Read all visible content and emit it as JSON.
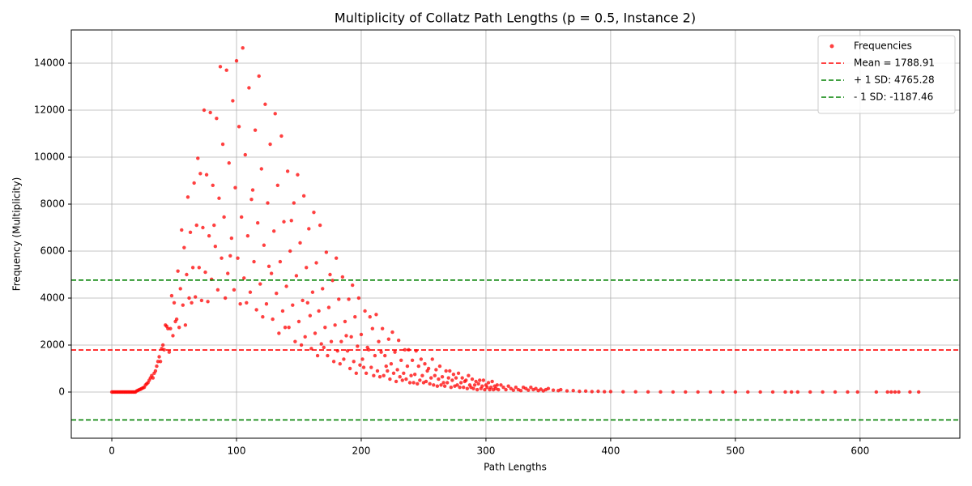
{
  "chart_data": {
    "type": "scatter",
    "title": "Multiplicity of Collatz Path Lengths (p = 0.5, Instance 2)",
    "x_label": "Path Lengths",
    "y_label": "Frequency (Multiplicity)",
    "xlim": [
      -32.5,
      680
    ],
    "ylim": [
      -1966,
      15414
    ],
    "xticks": [
      0,
      100,
      200,
      300,
      400,
      500,
      600
    ],
    "yticks": [
      0,
      2000,
      4000,
      6000,
      8000,
      10000,
      12000,
      14000
    ],
    "grid": true,
    "legend": "upper right",
    "x": [
      0,
      1,
      2,
      3,
      4,
      5,
      6,
      7,
      8,
      9,
      10,
      11,
      12,
      13,
      14,
      15,
      16,
      17,
      18,
      19,
      20,
      21,
      22,
      23,
      24,
      25,
      26,
      27,
      28,
      29,
      30,
      31,
      32,
      33,
      34,
      35,
      36,
      37,
      38,
      39,
      40,
      41,
      42,
      43,
      44,
      45,
      46,
      47,
      48,
      49,
      50,
      51,
      52,
      53,
      54,
      55,
      56,
      57,
      58,
      59,
      60,
      61,
      62,
      63,
      64,
      65,
      66,
      67,
      68,
      69,
      70,
      71,
      72,
      73,
      74,
      75,
      76,
      77,
      78,
      79,
      80,
      81,
      82,
      83,
      84,
      85,
      86,
      87,
      88,
      89,
      90,
      91,
      92,
      93,
      94,
      95,
      96,
      97,
      98,
      99,
      100,
      101,
      102,
      103,
      104,
      105,
      106,
      107,
      108,
      109,
      110,
      111,
      112,
      113,
      114,
      115,
      116,
      117,
      118,
      119,
      120,
      121,
      122,
      123,
      124,
      125,
      126,
      127,
      128,
      129,
      130,
      131,
      132,
      133,
      134,
      135,
      136,
      137,
      138,
      139,
      140,
      141,
      142,
      143,
      144,
      145,
      146,
      147,
      148,
      149,
      150,
      151,
      152,
      153,
      154,
      155,
      156,
      157,
      158,
      159,
      160,
      161,
      162,
      163,
      164,
      165,
      166,
      167,
      168,
      169,
      170,
      171,
      172,
      173,
      174,
      175,
      176,
      177,
      178,
      179,
      180,
      181,
      182,
      183,
      184,
      185,
      186,
      187,
      188,
      189,
      190,
      191,
      192,
      193,
      194,
      195,
      196,
      197,
      198,
      199,
      200,
      201,
      202,
      203,
      204,
      205,
      206,
      207,
      208,
      209,
      210,
      211,
      212,
      213,
      214,
      215,
      216,
      217,
      218,
      219,
      220,
      221,
      222,
      223,
      224,
      225,
      226,
      227,
      228,
      229,
      230,
      231,
      232,
      233,
      234,
      235,
      236,
      237,
      238,
      239,
      240,
      241,
      242,
      243,
      244,
      245,
      246,
      247,
      248,
      249,
      250,
      251,
      252,
      253,
      254,
      255,
      256,
      257,
      258,
      259,
      260,
      261,
      262,
      263,
      264,
      265,
      266,
      267,
      268,
      269,
      270,
      271,
      272,
      273,
      274,
      275,
      276,
      277,
      278,
      279,
      280,
      281,
      282,
      283,
      284,
      285,
      286,
      287,
      288,
      289,
      290,
      291,
      292,
      293,
      294,
      295,
      296,
      297,
      298,
      299,
      300,
      301,
      302,
      303,
      304,
      305,
      306,
      307,
      308,
      309,
      310,
      312,
      314,
      316,
      318,
      320,
      322,
      324,
      326,
      328,
      330,
      332,
      334,
      336,
      338,
      340,
      342,
      344,
      346,
      348,
      350,
      354,
      358,
      360,
      365,
      370,
      375,
      380,
      385,
      390,
      395,
      400,
      410,
      420,
      430,
      440,
      450,
      460,
      470,
      480,
      490,
      500,
      510,
      520,
      530,
      540,
      545,
      550,
      560,
      570,
      580,
      590,
      598,
      613,
      622,
      625,
      628,
      631,
      640,
      647
    ],
    "series": [
      {
        "name": "Frequencies",
        "color": "#ff0000",
        "values": [
          0,
          0,
          0,
          0,
          0,
          0,
          0,
          0,
          0,
          0,
          0,
          0,
          0,
          0,
          0,
          0,
          0,
          0,
          0,
          0,
          50,
          70,
          100,
          120,
          150,
          180,
          200,
          300,
          350,
          400,
          500,
          600,
          700,
          600,
          800,
          900,
          1100,
          1300,
          1500,
          1300,
          1850,
          2000,
          1800,
          2850,
          2800,
          2700,
          1700,
          2700,
          4100,
          2400,
          3800,
          3000,
          3100,
          5150,
          2750,
          4400,
          6900,
          3700,
          6150,
          2850,
          5000,
          8300,
          4000,
          6800,
          3800,
          5300,
          8900,
          4050,
          7100,
          9950,
          5300,
          9300,
          3900,
          7000,
          12000,
          5100,
          9250,
          3850,
          6650,
          11900,
          4800,
          8800,
          7100,
          6200,
          11650,
          4350,
          8250,
          13850,
          5700,
          10550,
          7450,
          4000,
          13700,
          5050,
          9750,
          5800,
          6550,
          12400,
          4350,
          8700,
          14100,
          5700,
          11300,
          3750,
          7450,
          14650,
          4850,
          10100,
          3800,
          6650,
          12950,
          4250,
          8200,
          8600,
          5550,
          11150,
          3500,
          7200,
          13450,
          4600,
          9500,
          3200,
          6250,
          12250,
          3750,
          8050,
          5350,
          10550,
          5050,
          3100,
          6850,
          11850,
          4200,
          8800,
          2500,
          5550,
          10900,
          3450,
          7250,
          2750,
          4500,
          9400,
          2750,
          6000,
          7300,
          3700,
          8050,
          2150,
          4950,
          9250,
          3000,
          6350,
          2000,
          3900,
          8350,
          2350,
          5300,
          3800,
          6950,
          3250,
          1850,
          4250,
          7650,
          2500,
          5500,
          1550,
          3450,
          7100,
          2050,
          4400,
          1900,
          2750,
          5950,
          1550,
          3600,
          5000,
          2150,
          4750,
          1300,
          2850,
          5700,
          1750,
          3950,
          1200,
          2150,
          4900,
          1400,
          3000,
          2400,
          1750,
          3950,
          1000,
          2350,
          4550,
          1300,
          3200,
          800,
          1950,
          4000,
          1150,
          2450,
          1400,
          1050,
          3450,
          800,
          1900,
          1800,
          3200,
          1050,
          2700,
          700,
          1550,
          3300,
          900,
          2150,
          650,
          1700,
          2700,
          700,
          1550,
          1100,
          900,
          2250,
          550,
          1200,
          2550,
          800,
          1700,
          450,
          950,
          2200,
          650,
          1350,
          500,
          800,
          1800,
          550,
          1100,
          1800,
          400,
          700,
          1350,
          400,
          750,
          1750,
          350,
          1100,
          500,
          1400,
          700,
          400,
          1200,
          450,
          900,
          1000,
          350,
          600,
          1400,
          300,
          700,
          950,
          250,
          550,
          1100,
          300,
          650,
          400,
          250,
          900,
          400,
          600,
          900,
          200,
          500,
          750,
          250,
          600,
          300,
          800,
          200,
          400,
          600,
          200,
          450,
          500,
          150,
          700,
          300,
          200,
          550,
          150,
          300,
          450,
          100,
          350,
          500,
          150,
          250,
          500,
          100,
          300,
          200,
          400,
          100,
          200,
          450,
          100,
          250,
          150,
          300,
          100,
          300,
          200,
          100,
          250,
          150,
          80,
          200,
          100,
          60,
          200,
          150,
          80,
          200,
          100,
          150,
          60,
          120,
          50,
          100,
          150,
          80,
          60,
          100,
          50,
          60,
          30,
          40,
          20,
          30,
          15,
          20,
          10,
          10,
          5,
          5,
          3,
          2,
          2,
          1,
          1,
          1,
          1,
          1,
          1,
          1,
          1,
          1,
          1,
          1,
          1,
          1,
          1,
          1,
          1,
          1,
          1,
          1,
          1,
          1
        ]
      }
    ],
    "hlines": [
      {
        "name": "Mean = 1788.91",
        "value": 1788.91,
        "color": "#ff0000"
      },
      {
        "name": "+ 1 SD: 4765.28",
        "value": 4765.28,
        "color": "#008000"
      },
      {
        "name": "- 1 SD: -1187.46",
        "value": -1187.46,
        "color": "#008000"
      }
    ]
  }
}
